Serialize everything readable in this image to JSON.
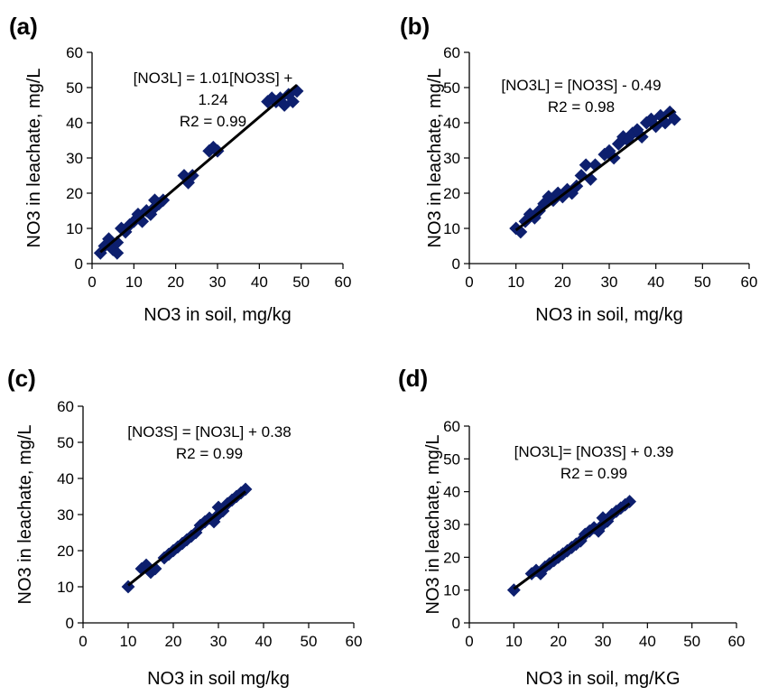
{
  "figure": {
    "background": "#ffffff",
    "marker_color": "#0d1f6e",
    "line_color": "#000000"
  },
  "chart_data": [
    {
      "type": "scatter",
      "panel_label": "(a)",
      "xlabel": "NO3 in soil, mg/kg",
      "ylabel": "NO3 in leachate, mg/L",
      "xlim": [
        0,
        60
      ],
      "ylim": [
        0,
        60
      ],
      "xticks": [
        0,
        10,
        20,
        30,
        40,
        50,
        60
      ],
      "yticks": [
        0,
        10,
        20,
        30,
        40,
        50,
        60
      ],
      "equation_lines": [
        "[NO3L] = 1.01[NO3S] +",
        "1.24",
        "R2 = 0.99"
      ],
      "trendline": {
        "slope": 1.01,
        "intercept": 1.24,
        "x_range": [
          2,
          49
        ]
      },
      "points": [
        [
          2,
          3
        ],
        [
          3,
          5
        ],
        [
          4,
          7
        ],
        [
          5,
          4
        ],
        [
          6,
          3
        ],
        [
          6,
          6
        ],
        [
          7,
          10
        ],
        [
          8,
          9
        ],
        [
          9,
          11
        ],
        [
          10,
          12
        ],
        [
          11,
          14
        ],
        [
          12,
          12
        ],
        [
          13,
          15
        ],
        [
          14,
          14
        ],
        [
          15,
          16
        ],
        [
          16,
          17
        ],
        [
          17,
          18
        ],
        [
          15,
          18
        ],
        [
          22,
          25
        ],
        [
          23,
          23
        ],
        [
          24,
          25
        ],
        [
          28,
          32
        ],
        [
          29,
          33
        ],
        [
          30,
          32
        ],
        [
          42,
          46
        ],
        [
          43,
          47
        ],
        [
          44,
          46
        ],
        [
          45,
          47
        ],
        [
          46,
          45
        ],
        [
          47,
          48
        ],
        [
          48,
          46
        ],
        [
          49,
          49
        ]
      ]
    },
    {
      "type": "scatter",
      "panel_label": "(b)",
      "xlabel": "NO3 in soil, mg/kg",
      "ylabel": "NO3 in leachate, mg/L",
      "xlim": [
        0,
        60
      ],
      "ylim": [
        0,
        60
      ],
      "xticks": [
        0,
        10,
        20,
        30,
        40,
        50,
        60
      ],
      "yticks": [
        0,
        10,
        20,
        30,
        40,
        50,
        60
      ],
      "equation_lines": [
        "[NO3L] = [NO3S] - 0.49",
        "R2 = 0.98"
      ],
      "trendline": {
        "slope": 1.0,
        "intercept": -0.49,
        "x_range": [
          10,
          44
        ]
      },
      "points": [
        [
          10,
          10
        ],
        [
          11,
          9
        ],
        [
          12,
          12
        ],
        [
          13,
          14
        ],
        [
          14,
          13
        ],
        [
          15,
          15
        ],
        [
          16,
          17
        ],
        [
          17,
          19
        ],
        [
          18,
          18
        ],
        [
          19,
          20
        ],
        [
          20,
          19
        ],
        [
          21,
          21
        ],
        [
          22,
          20
        ],
        [
          23,
          22
        ],
        [
          24,
          25
        ],
        [
          25,
          28
        ],
        [
          26,
          24
        ],
        [
          27,
          28
        ],
        [
          29,
          31
        ],
        [
          30,
          32
        ],
        [
          31,
          30
        ],
        [
          32,
          34
        ],
        [
          33,
          36
        ],
        [
          34,
          35
        ],
        [
          35,
          37
        ],
        [
          36,
          38
        ],
        [
          37,
          36
        ],
        [
          38,
          40
        ],
        [
          39,
          41
        ],
        [
          40,
          39
        ],
        [
          41,
          42
        ],
        [
          42,
          40
        ],
        [
          43,
          43
        ],
        [
          44,
          41
        ]
      ]
    },
    {
      "type": "scatter",
      "panel_label": "(c)",
      "xlabel": "NO3 in soil mg/kg",
      "ylabel": "NO3 in leachate, mg/L",
      "xlim": [
        0,
        60
      ],
      "ylim": [
        0,
        60
      ],
      "xticks": [
        0,
        10,
        20,
        30,
        40,
        50,
        60
      ],
      "yticks": [
        0,
        10,
        20,
        30,
        40,
        50,
        60
      ],
      "equation_lines": [
        "[NO3S] = [NO3L] + 0.38",
        "R2 = 0.99"
      ],
      "trendline": {
        "slope": 1.0,
        "intercept": 0.38,
        "x_range": [
          10,
          36
        ]
      },
      "points": [
        [
          10,
          10
        ],
        [
          13,
          15
        ],
        [
          14,
          16
        ],
        [
          15,
          14
        ],
        [
          16,
          15
        ],
        [
          18,
          18
        ],
        [
          19,
          19
        ],
        [
          20,
          20
        ],
        [
          21,
          21
        ],
        [
          22,
          22
        ],
        [
          23,
          23
        ],
        [
          24,
          24
        ],
        [
          25,
          25
        ],
        [
          26,
          27
        ],
        [
          27,
          28
        ],
        [
          28,
          29
        ],
        [
          29,
          28
        ],
        [
          30,
          30
        ],
        [
          30,
          32
        ],
        [
          31,
          31
        ],
        [
          32,
          33
        ],
        [
          33,
          34
        ],
        [
          34,
          35
        ],
        [
          35,
          36
        ],
        [
          36,
          37
        ]
      ]
    },
    {
      "type": "scatter",
      "panel_label": "(d)",
      "xlabel": "NO3 in soil, mg/KG",
      "ylabel": "NO3 in leachate, mg/L",
      "xlim": [
        0,
        60
      ],
      "ylim": [
        0,
        60
      ],
      "xticks": [
        0,
        10,
        20,
        30,
        40,
        50,
        60
      ],
      "yticks": [
        0,
        10,
        20,
        30,
        40,
        50,
        60
      ],
      "equation_lines": [
        "[NO3L]= [NO3S] + 0.39",
        "R2 = 0.99"
      ],
      "trendline": {
        "slope": 1.0,
        "intercept": 0.39,
        "x_range": [
          10,
          36
        ]
      },
      "points": [
        [
          10,
          10
        ],
        [
          14,
          15
        ],
        [
          15,
          16
        ],
        [
          16,
          15
        ],
        [
          17,
          17
        ],
        [
          18,
          18
        ],
        [
          19,
          19
        ],
        [
          20,
          20
        ],
        [
          21,
          21
        ],
        [
          22,
          22
        ],
        [
          23,
          23
        ],
        [
          24,
          24
        ],
        [
          25,
          25
        ],
        [
          26,
          27
        ],
        [
          27,
          28
        ],
        [
          28,
          29
        ],
        [
          29,
          28
        ],
        [
          30,
          30
        ],
        [
          30,
          32
        ],
        [
          31,
          31
        ],
        [
          32,
          33
        ],
        [
          33,
          34
        ],
        [
          34,
          35
        ],
        [
          35,
          36
        ],
        [
          36,
          37
        ]
      ]
    }
  ]
}
